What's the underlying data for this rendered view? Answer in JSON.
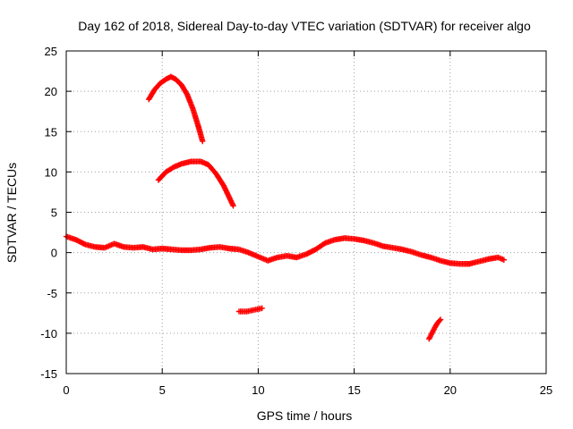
{
  "chart_data": {
    "type": "scatter",
    "title": "Day 162 of 2018, Sidereal Day-to-day VTEC variation (SDTVAR) for receiver algo",
    "xlabel": "GPS time / hours",
    "ylabel": "SDTVAR / TECUs",
    "xlim": [
      0,
      25
    ],
    "ylim": [
      -15,
      25
    ],
    "xticks": [
      0,
      5,
      10,
      15,
      20,
      25
    ],
    "yticks": [
      -15,
      -10,
      -5,
      0,
      5,
      10,
      15,
      20,
      25
    ],
    "grid": true,
    "marker": "+",
    "color": "#ff0000",
    "series": [
      {
        "name": "arc-upper-1",
        "points": [
          [
            4.3,
            19.0
          ],
          [
            4.6,
            20.2
          ],
          [
            4.9,
            21.0
          ],
          [
            5.2,
            21.5
          ],
          [
            5.45,
            21.8
          ],
          [
            5.7,
            21.5
          ],
          [
            6.0,
            20.8
          ],
          [
            6.3,
            19.6
          ],
          [
            6.6,
            17.8
          ],
          [
            6.9,
            15.5
          ],
          [
            7.1,
            13.8
          ]
        ]
      },
      {
        "name": "arc-upper-2",
        "points": [
          [
            4.8,
            9.0
          ],
          [
            5.2,
            10.0
          ],
          [
            5.6,
            10.6
          ],
          [
            6.0,
            11.0
          ],
          [
            6.5,
            11.3
          ],
          [
            7.0,
            11.3
          ],
          [
            7.4,
            10.9
          ],
          [
            7.8,
            9.8
          ],
          [
            8.2,
            8.3
          ],
          [
            8.7,
            5.8
          ]
        ]
      },
      {
        "name": "band-main",
        "points": [
          [
            0.0,
            2.0
          ],
          [
            0.5,
            1.6
          ],
          [
            1.0,
            1.0
          ],
          [
            1.5,
            0.7
          ],
          [
            2.0,
            0.6
          ],
          [
            2.5,
            1.1
          ],
          [
            3.0,
            0.7
          ],
          [
            3.5,
            0.6
          ],
          [
            4.0,
            0.7
          ],
          [
            4.5,
            0.4
          ],
          [
            5.0,
            0.5
          ],
          [
            5.5,
            0.4
          ],
          [
            6.0,
            0.3
          ],
          [
            6.5,
            0.3
          ],
          [
            7.0,
            0.4
          ],
          [
            7.5,
            0.6
          ],
          [
            8.0,
            0.7
          ],
          [
            8.5,
            0.5
          ],
          [
            9.0,
            0.4
          ],
          [
            9.5,
            0.0
          ],
          [
            10.0,
            -0.5
          ],
          [
            10.5,
            -1.0
          ],
          [
            11.0,
            -0.6
          ],
          [
            11.5,
            -0.4
          ],
          [
            12.0,
            -0.6
          ],
          [
            12.5,
            -0.2
          ],
          [
            13.0,
            0.4
          ],
          [
            13.5,
            1.2
          ],
          [
            14.0,
            1.6
          ],
          [
            14.5,
            1.8
          ],
          [
            15.0,
            1.7
          ],
          [
            15.5,
            1.5
          ],
          [
            16.0,
            1.2
          ],
          [
            16.5,
            0.8
          ],
          [
            17.0,
            0.6
          ],
          [
            17.5,
            0.4
          ],
          [
            18.0,
            0.1
          ],
          [
            18.5,
            -0.3
          ],
          [
            19.0,
            -0.6
          ],
          [
            19.5,
            -1.0
          ],
          [
            20.0,
            -1.3
          ],
          [
            20.5,
            -1.4
          ],
          [
            21.0,
            -1.4
          ],
          [
            21.5,
            -1.1
          ],
          [
            22.0,
            -0.8
          ],
          [
            22.5,
            -0.6
          ],
          [
            22.8,
            -0.9
          ]
        ]
      },
      {
        "name": "arc-lower-1",
        "points": [
          [
            9.0,
            -7.3
          ],
          [
            9.4,
            -7.3
          ],
          [
            9.8,
            -7.1
          ],
          [
            10.2,
            -6.9
          ]
        ]
      },
      {
        "name": "arc-lower-2",
        "points": [
          [
            18.9,
            -10.7
          ],
          [
            19.05,
            -10.0
          ],
          [
            19.2,
            -9.3
          ],
          [
            19.35,
            -8.7
          ],
          [
            19.5,
            -8.3
          ]
        ]
      }
    ]
  }
}
